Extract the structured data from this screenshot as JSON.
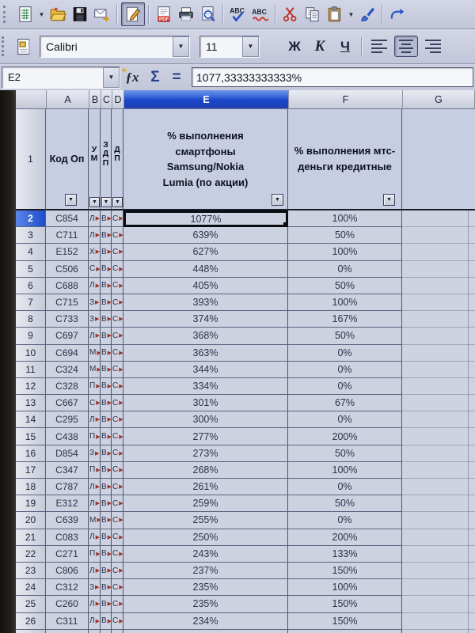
{
  "colors": {
    "selection_blue": "#1c45c9",
    "toolbar_bg": "#c7cbde",
    "cell_bg": "#cdd2e1",
    "overflow_red": "#9c342a"
  },
  "toolbar_main": {
    "icons": [
      "new-spreadsheet-icon",
      "new-dropdown-icon",
      "open-folder-icon",
      "save-floppy-icon",
      "email-icon",
      "edit-file-icon",
      "export-pdf-icon",
      "print-icon",
      "page-preview-icon",
      "spellcheck-icon",
      "auto-spellcheck-icon",
      "cut-icon",
      "copy-icon",
      "paste-icon",
      "paste-dropdown-icon",
      "format-paintbrush-icon",
      "undo-icon-partial"
    ]
  },
  "toolbar_format": {
    "font_name": "Calibri",
    "font_size": "11",
    "bold": "Ж",
    "italic": "K",
    "underline": "Ч",
    "align_options": [
      "left",
      "center",
      "right"
    ],
    "align_active": "center"
  },
  "formula_bar": {
    "cell_ref": "E2",
    "function_label": "ƒx",
    "sum_label": "Σ",
    "equals_label": "=",
    "formula": "1077,33333333333%"
  },
  "sheet": {
    "column_letters": [
      "A",
      "B",
      "C",
      "D",
      "E",
      "F",
      "G"
    ],
    "selected_column": "E",
    "selected_row_label": "2",
    "header_row_number": "1",
    "filter_glyph": "▼",
    "overflow_marker": "▶",
    "headers": {
      "a": "Код Оп",
      "b": "У\nМ",
      "c": "З\nД\nП",
      "d": "Д\nП",
      "e": "% выполнения\nсмартфоны\nSamsung/Nokia\nLumia (по акции)",
      "f": "% выполнения мтс-\nденьги кредитные"
    },
    "rows": [
      {
        "n": "2",
        "a": "C854",
        "b": "Л",
        "c": "В",
        "d": "С",
        "e": "1077%",
        "f": "100%"
      },
      {
        "n": "3",
        "a": "C711",
        "b": "Л",
        "c": "В",
        "d": "С",
        "e": "639%",
        "f": "50%"
      },
      {
        "n": "4",
        "a": "E152",
        "b": "Х",
        "c": "В",
        "d": "С",
        "e": "627%",
        "f": "100%"
      },
      {
        "n": "5",
        "a": "C506",
        "b": "С",
        "c": "В",
        "d": "С",
        "e": "448%",
        "f": "0%"
      },
      {
        "n": "6",
        "a": "C688",
        "b": "Л",
        "c": "В",
        "d": "С",
        "e": "405%",
        "f": "50%"
      },
      {
        "n": "7",
        "a": "C715",
        "b": "З",
        "c": "В",
        "d": "С",
        "e": "393%",
        "f": "100%"
      },
      {
        "n": "8",
        "a": "C733",
        "b": "З",
        "c": "В",
        "d": "С",
        "e": "374%",
        "f": "167%"
      },
      {
        "n": "9",
        "a": "C697",
        "b": "Л",
        "c": "В",
        "d": "С",
        "e": "368%",
        "f": "50%"
      },
      {
        "n": "10",
        "a": "C694",
        "b": "М",
        "c": "В",
        "d": "С",
        "e": "363%",
        "f": "0%"
      },
      {
        "n": "11",
        "a": "C324",
        "b": "М",
        "c": "В",
        "d": "С",
        "e": "344%",
        "f": "0%"
      },
      {
        "n": "12",
        "a": "C328",
        "b": "П",
        "c": "В",
        "d": "С",
        "e": "334%",
        "f": "0%"
      },
      {
        "n": "13",
        "a": "C667",
        "b": "С",
        "c": "В",
        "d": "С",
        "e": "301%",
        "f": "67%"
      },
      {
        "n": "14",
        "a": "C295",
        "b": "Л",
        "c": "В",
        "d": "С",
        "e": "300%",
        "f": "0%"
      },
      {
        "n": "15",
        "a": "C438",
        "b": "П",
        "c": "В",
        "d": "С",
        "e": "277%",
        "f": "200%"
      },
      {
        "n": "16",
        "a": "D854",
        "b": "З",
        "c": "В",
        "d": "С",
        "e": "273%",
        "f": "50%"
      },
      {
        "n": "17",
        "a": "C347",
        "b": "П",
        "c": "В",
        "d": "С",
        "e": "268%",
        "f": "100%"
      },
      {
        "n": "18",
        "a": "C787",
        "b": "Л",
        "c": "В",
        "d": "С",
        "e": "261%",
        "f": "0%"
      },
      {
        "n": "19",
        "a": "E312",
        "b": "Л",
        "c": "В",
        "d": "С",
        "e": "259%",
        "f": "50%"
      },
      {
        "n": "20",
        "a": "C639",
        "b": "М",
        "c": "В",
        "d": "С",
        "e": "255%",
        "f": "0%"
      },
      {
        "n": "21",
        "a": "C083",
        "b": "Л",
        "c": "В",
        "d": "С",
        "e": "250%",
        "f": "200%"
      },
      {
        "n": "22",
        "a": "C271",
        "b": "П",
        "c": "В",
        "d": "С",
        "e": "243%",
        "f": "133%"
      },
      {
        "n": "23",
        "a": "C806",
        "b": "Л",
        "c": "В",
        "d": "С",
        "e": "237%",
        "f": "150%"
      },
      {
        "n": "24",
        "a": "C312",
        "b": "З",
        "c": "В",
        "d": "С",
        "e": "235%",
        "f": "100%"
      },
      {
        "n": "25",
        "a": "C260",
        "b": "Л",
        "c": "В",
        "d": "С",
        "e": "235%",
        "f": "150%"
      },
      {
        "n": "26",
        "a": "C311",
        "b": "Л",
        "c": "В",
        "d": "С",
        "e": "234%",
        "f": "150%"
      },
      {
        "n": "27",
        "a": "",
        "b": "",
        "c": "",
        "d": "",
        "e": "",
        "f": ""
      }
    ]
  }
}
